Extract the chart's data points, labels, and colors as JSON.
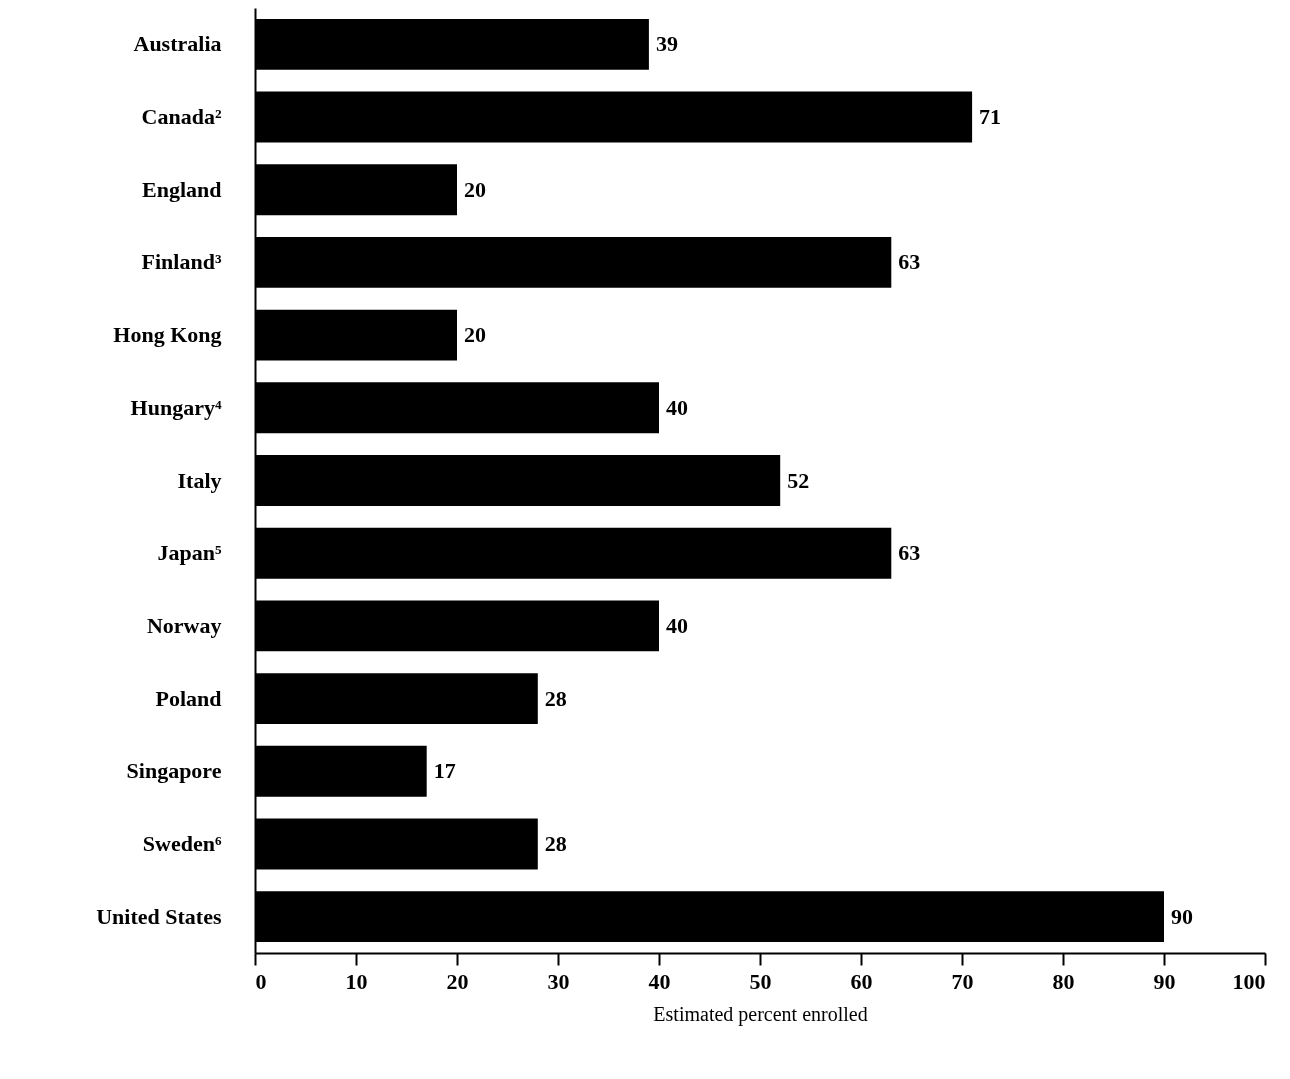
{
  "chart_data": {
    "type": "bar",
    "orientation": "horizontal",
    "xlabel": "Estimated percent enrolled",
    "categories": [
      "Australia",
      "Canada²",
      "England",
      "Finland³",
      "Hong Kong",
      "Hungary⁴",
      "Italy",
      "Japan⁵",
      "Norway",
      "Poland",
      "Singapore",
      "Sweden⁶",
      "United States"
    ],
    "values": [
      39,
      71,
      20,
      63,
      20,
      40,
      52,
      63,
      40,
      28,
      17,
      28,
      90
    ],
    "color": "#000000",
    "xlim": [
      0,
      100
    ],
    "xticks": [
      0,
      10,
      20,
      30,
      40,
      50,
      60,
      70,
      80,
      90,
      100
    ],
    "data_labels": true,
    "grid": false
  }
}
